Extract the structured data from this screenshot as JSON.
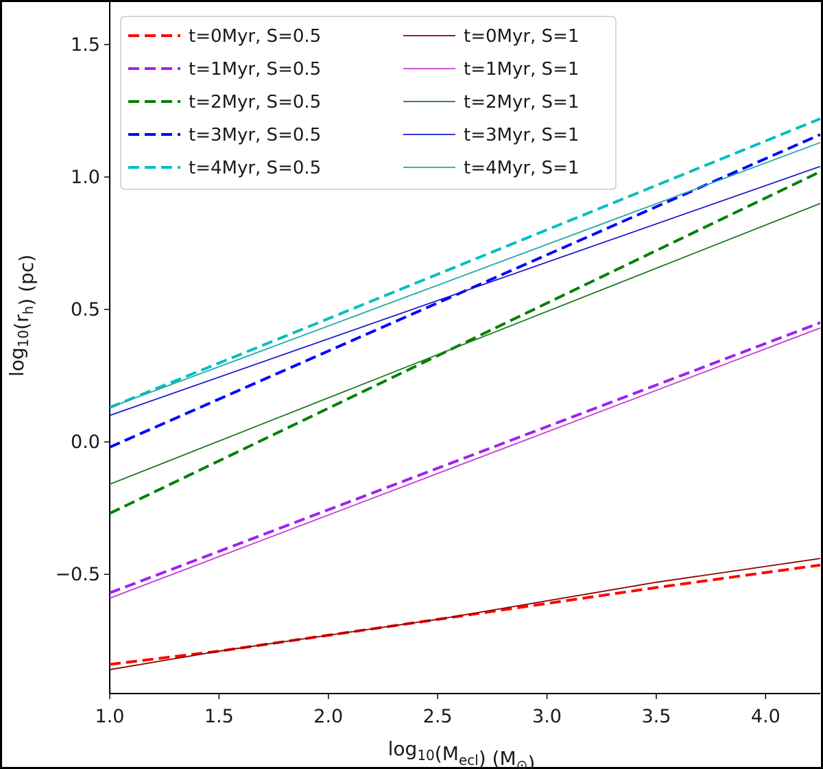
{
  "chart_data": {
    "type": "line",
    "title": "",
    "xlabel": {
      "prefix": "log",
      "sub": "10",
      "mid": "(M",
      "sub2": "ecl",
      "suffix": ") (M",
      "sub3": "⊙",
      "end": ")"
    },
    "ylabel": {
      "prefix": "log",
      "sub": "10",
      "mid": "(r",
      "sub2": "h",
      "suffix": ") (pc)"
    },
    "xlim": [
      1.0,
      4.25
    ],
    "ylim": [
      -0.95,
      1.72
    ],
    "xticks": [
      1.0,
      1.5,
      2.0,
      2.5,
      3.0,
      3.5,
      4.0
    ],
    "xtick_labels": [
      "1.0",
      "1.5",
      "2.0",
      "2.5",
      "3.0",
      "3.5",
      "4.0"
    ],
    "yticks": [
      -0.5,
      0.0,
      0.5,
      1.0,
      1.5
    ],
    "ytick_labels": [
      "−0.5",
      "0.0",
      "0.5",
      "1.0",
      "1.5"
    ],
    "grid": false,
    "legend_position": "top-left",
    "series": [
      {
        "name": "t=0Myr, S=0.5",
        "color": "#ff0000",
        "style": "dashed",
        "x": [
          1.0,
          1.5,
          2.0,
          2.5,
          3.0,
          3.5,
          4.25
        ],
        "y": [
          -0.84,
          -0.79,
          -0.73,
          -0.67,
          -0.61,
          -0.55,
          -0.465
        ]
      },
      {
        "name": "t=1Myr, S=0.5",
        "color": "#a020f0",
        "style": "dashed",
        "x": [
          1.0,
          4.25
        ],
        "y": [
          -0.57,
          0.45
        ]
      },
      {
        "name": "t=2Myr, S=0.5",
        "color": "#008000",
        "style": "dashed",
        "x": [
          1.0,
          4.25
        ],
        "y": [
          -0.27,
          1.02
        ]
      },
      {
        "name": "t=3Myr, S=0.5",
        "color": "#0000ff",
        "style": "dashed",
        "x": [
          1.0,
          4.25
        ],
        "y": [
          -0.02,
          1.16
        ]
      },
      {
        "name": "t=4Myr, S=0.5",
        "color": "#00bfbf",
        "style": "dashed",
        "x": [
          1.0,
          4.25
        ],
        "y": [
          0.13,
          1.22
        ]
      },
      {
        "name": "t=0Myr, S=1",
        "color": "#8b0000",
        "style": "solid",
        "x": [
          1.0,
          1.5,
          2.0,
          2.5,
          3.0,
          3.5,
          4.25
        ],
        "y": [
          -0.86,
          -0.79,
          -0.73,
          -0.67,
          -0.6,
          -0.53,
          -0.44
        ]
      },
      {
        "name": "t=1Myr, S=1",
        "color": "#c040d0",
        "style": "solid",
        "x": [
          1.0,
          4.25
        ],
        "y": [
          -0.59,
          0.43
        ]
      },
      {
        "name": "t=2Myr, S=1",
        "color": "#1e7a1e",
        "style": "solid",
        "x": [
          1.0,
          4.25
        ],
        "y": [
          -0.16,
          0.9
        ]
      },
      {
        "name": "t=3Myr, S=1",
        "color": "#1a1acd",
        "style": "solid",
        "x": [
          1.0,
          4.25
        ],
        "y": [
          0.1,
          1.04
        ]
      },
      {
        "name": "t=4Myr, S=1",
        "color": "#20a8a8",
        "style": "solid",
        "x": [
          1.0,
          4.25
        ],
        "y": [
          0.13,
          1.13
        ]
      }
    ]
  }
}
